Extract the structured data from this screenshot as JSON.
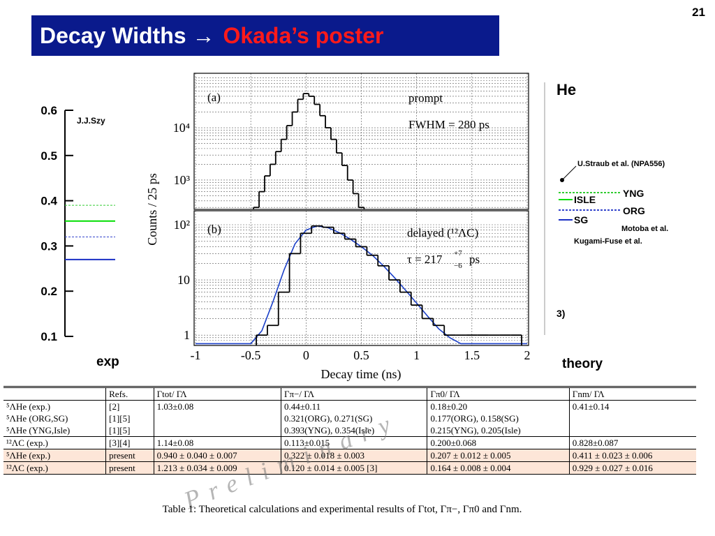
{
  "page_number": "21",
  "title": {
    "main": "Decay Widths  →",
    "highlight": "Okada’s poster"
  },
  "background_labels": {
    "left_name": "J.J.Szy",
    "left_axis": "exp",
    "right_top": "He",
    "straub": "U.Straub et al. (NPA556)",
    "yng": "YNG",
    "isle": "ISLE",
    "org": "ORG",
    "sg": "SG",
    "motoba": "Motoba et al.",
    "kugami": "Kugami-Fuse et al.",
    "ref": "3)",
    "right_axis": "theory"
  },
  "chart_data": [
    {
      "type": "levels",
      "ylim": [
        0.1,
        0.6
      ],
      "yticks": [
        0.1,
        0.2,
        0.3,
        0.4,
        0.5,
        0.6
      ],
      "series": [
        {
          "color": "#33cc33",
          "dash": true,
          "values": [
            0.39
          ]
        },
        {
          "color": "#00dd00",
          "dash": false,
          "values": [
            0.355
          ]
        },
        {
          "color": "#3344cc",
          "dash": true,
          "values": [
            0.32
          ]
        },
        {
          "color": "#1a2fc4",
          "dash": false,
          "values": [
            0.27
          ]
        }
      ]
    },
    {
      "type": "histogram",
      "log_y": true,
      "grid": true,
      "xlim": [
        -1,
        2
      ],
      "xticks": [
        -1,
        -0.5,
        0,
        0.5,
        1,
        1.5,
        2
      ],
      "xtick_labels": false,
      "ylim": [
        275,
        110000
      ],
      "yticks": [
        {
          "value": 1000,
          "label": "10³"
        },
        {
          "value": 10000,
          "label": "10⁴"
        }
      ],
      "annotations": {
        "panel": "(a)",
        "label": "prompt",
        "fwhm": "FWHM = 280 ps"
      },
      "bins": [
        -0.475,
        -0.425,
        -0.375,
        -0.325,
        -0.275,
        -0.225,
        -0.175,
        -0.125,
        -0.075,
        -0.025,
        0.025,
        0.075,
        0.125,
        0.175,
        0.225,
        0.275,
        0.325,
        0.375,
        0.425,
        0.475,
        0.525
      ],
      "values": [
        300,
        600,
        1200,
        2000,
        3500,
        6000,
        11000,
        20000,
        35000,
        45000,
        40000,
        28000,
        17000,
        10000,
        6000,
        3300,
        1900,
        1000,
        550,
        300
      ],
      "color": "#000000"
    },
    {
      "type": "histogram",
      "log_y": true,
      "grid": true,
      "xlim": [
        -1,
        2
      ],
      "xticks": [
        -1,
        -0.5,
        0,
        0.5,
        1,
        1.5,
        2
      ],
      "xtick_labels": true,
      "ylim": [
        0.65,
        179
      ],
      "yticks": [
        1,
        10,
        {
          "value": 100,
          "label": "10²"
        }
      ],
      "xlabel": "Decay time (ns)",
      "ylabel": "Counts / 25 ps",
      "annotations": {
        "panel": "(b)",
        "label": "delayed (¹²ΛC)",
        "tau": "τ = 217",
        "tau_plus": "+7",
        "tau_minus": "−6",
        "tau_unit": "ps"
      },
      "bins": [
        -0.45,
        -0.35,
        -0.25,
        -0.15,
        -0.05,
        0.05,
        0.15,
        0.25,
        0.35,
        0.45,
        0.55,
        0.65,
        0.75,
        0.85,
        0.95,
        1.05,
        1.15,
        1.25,
        1.35,
        1.45,
        1.55,
        1.65,
        1.75,
        1.85,
        1.95
      ],
      "values": [
        1,
        1.5,
        6,
        30,
        70,
        95,
        90,
        70,
        55,
        40,
        28,
        18,
        10,
        6,
        3.5,
        2,
        1.5,
        1,
        1,
        1,
        1,
        1,
        1,
        1
      ],
      "color": "#000000",
      "fit": {
        "color": "#1a3fc8",
        "x": [
          -1,
          -0.5,
          -0.4,
          -0.3,
          -0.2,
          -0.1,
          0,
          0.1,
          0.2,
          0.3,
          0.4,
          0.5,
          0.6,
          0.7,
          0.8,
          0.9,
          1.0,
          1.1,
          1.2,
          1.3,
          1.4,
          2.0
        ],
        "values": [
          0.7,
          0.7,
          1.2,
          4,
          15,
          45,
          80,
          95,
          88,
          72,
          55,
          40,
          28,
          18,
          11,
          6.5,
          3.8,
          2.2,
          1.3,
          0.9,
          0.7,
          0.7
        ]
      }
    }
  ],
  "table": {
    "header": [
      null,
      "Refs.",
      "Γtot/ ΓΛ",
      "Γπ−/ ΓΛ",
      "Γπ0/ ΓΛ",
      "Γnm/ ΓΛ"
    ],
    "rows": [
      [
        "⁵ΛHe (exp.)",
        "[2]",
        "1.03±0.08",
        "0.44±0.11",
        "0.18±0.20",
        "0.41±0.14"
      ],
      [
        "⁵ΛHe (ORG,SG)",
        "[1][5]",
        null,
        "0.321(ORG), 0.271(SG)",
        "0.177(ORG), 0.158(SG)",
        null
      ],
      [
        "⁵ΛHe (YNG,Isle)",
        "[1][5]",
        null,
        "0.393(YNG), 0.354(Isle)",
        "0.215(YNG), 0.205(Isle)",
        null
      ],
      [
        "¹²ΛC (exp.)",
        "[3][4]",
        "1.14±0.08",
        "0.113±0.015",
        "0.200±0.068",
        "0.828±0.087"
      ],
      [
        "⁵ΛHe (exp.)",
        "present",
        "0.940 ± 0.040 ± 0.007",
        "0.322 ± 0.018 ± 0.003",
        "0.207 ± 0.012 ± 0.005",
        "0.411 ± 0.023 ± 0.006"
      ],
      [
        "¹²ΛC (exp.)",
        "present",
        "1.213 ± 0.034 ± 0.009",
        "0.120 ± 0.014 ± 0.005 [3]",
        "0.164 ± 0.008 ± 0.004",
        "0.929 ± 0.027 ± 0.016"
      ]
    ],
    "highlight_rows": [
      4,
      5
    ],
    "caption": "Table 1: Theoretical calculations and experimental results of Γtot, Γπ−, Γπ0 and Γnm.",
    "watermark": "Preliminary"
  }
}
